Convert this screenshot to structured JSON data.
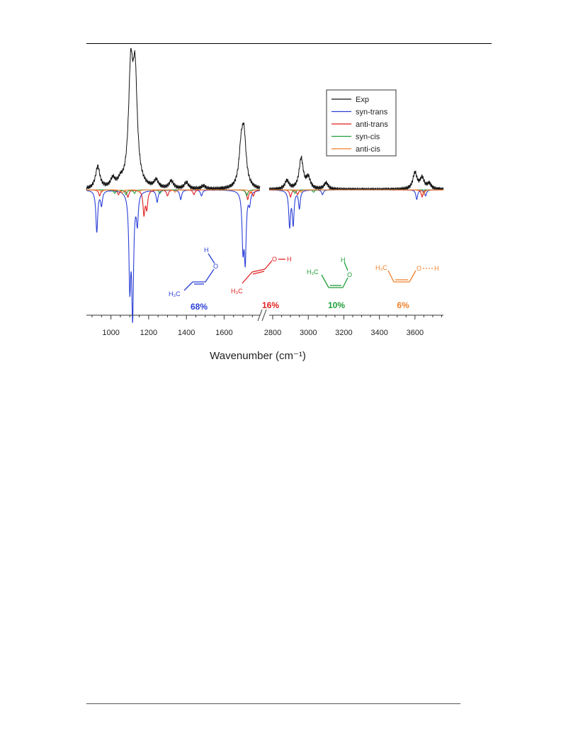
{
  "chart_data": {
    "type": "line",
    "xlabel": "Wavenumber (cm⁻¹)",
    "x_axis": {
      "broken": true,
      "segments": [
        {
          "range": [
            870,
            1790
          ],
          "ticks": [
            1000,
            1200,
            1400,
            1600
          ]
        },
        {
          "range": [
            2780,
            3760
          ],
          "ticks": [
            2800,
            3000,
            3200,
            3400,
            3600
          ]
        }
      ]
    },
    "legend": {
      "position": "top-right",
      "entries": [
        "Exp",
        "syn-trans",
        "anti-trans",
        "syn-cis",
        "anti-cis"
      ]
    },
    "series": [
      {
        "name": "Exp",
        "color": "#111111",
        "direction": "up",
        "peaks": [
          [
            930,
            0.2
          ],
          [
            1010,
            0.08
          ],
          [
            1050,
            0.05
          ],
          [
            1105,
            1.0
          ],
          [
            1128,
            0.95
          ],
          [
            1240,
            0.07
          ],
          [
            1320,
            0.07
          ],
          [
            1400,
            0.06
          ],
          [
            1490,
            0.03
          ],
          [
            1690,
            0.3
          ],
          [
            1705,
            0.45
          ],
          [
            2880,
            0.08
          ],
          [
            2960,
            0.28
          ],
          [
            3000,
            0.1
          ],
          [
            3100,
            0.06
          ],
          [
            3600,
            0.15
          ],
          [
            3640,
            0.1
          ],
          [
            3680,
            0.05
          ]
        ]
      },
      {
        "name": "syn-trans",
        "color": "#2a3fd6",
        "direction": "down",
        "peaks": [
          [
            925,
            0.35
          ],
          [
            950,
            0.12
          ],
          [
            1100,
            0.75
          ],
          [
            1115,
            1.0
          ],
          [
            1140,
            0.25
          ],
          [
            1245,
            0.1
          ],
          [
            1370,
            0.08
          ],
          [
            1480,
            0.05
          ],
          [
            1700,
            0.45
          ],
          [
            1712,
            0.55
          ],
          [
            1735,
            0.1
          ],
          [
            2895,
            0.3
          ],
          [
            2915,
            0.28
          ],
          [
            2950,
            0.15
          ],
          [
            3080,
            0.04
          ],
          [
            3610,
            0.08
          ],
          [
            3660,
            0.05
          ]
        ]
      },
      {
        "name": "anti-trans",
        "color": "#e01f1f",
        "direction": "down",
        "peaks": [
          [
            940,
            0.05
          ],
          [
            1040,
            0.04
          ],
          [
            1090,
            0.06
          ],
          [
            1175,
            0.2
          ],
          [
            1190,
            0.15
          ],
          [
            1300,
            0.05
          ],
          [
            1440,
            0.04
          ],
          [
            1725,
            0.08
          ],
          [
            1755,
            0.05
          ],
          [
            2900,
            0.06
          ],
          [
            2940,
            0.04
          ],
          [
            3640,
            0.06
          ]
        ]
      },
      {
        "name": "syn-cis",
        "color": "#1e9e3a",
        "direction": "down",
        "peaks": [
          [
            1020,
            0.03
          ],
          [
            1080,
            0.04
          ],
          [
            1125,
            0.03
          ],
          [
            1260,
            0.03
          ],
          [
            1720,
            0.05
          ],
          [
            2925,
            0.03
          ],
          [
            3030,
            0.02
          ]
        ]
      },
      {
        "name": "anti-cis",
        "color": "#f07f2a",
        "direction": "down",
        "peaks": [
          [
            950,
            0.02
          ],
          [
            1060,
            0.03
          ],
          [
            1150,
            0.02
          ],
          [
            1340,
            0.02
          ],
          [
            1740,
            0.03
          ],
          [
            2960,
            0.02
          ],
          [
            3650,
            0.04
          ]
        ]
      }
    ],
    "annotations": [
      {
        "percent": "68%",
        "color": "#2a3fd6",
        "o_label": "O",
        "h_label": "H",
        "ch3_label": "H₃C"
      },
      {
        "percent": "16%",
        "color": "#e01f1f",
        "o_label": "O",
        "h_label": "H",
        "ch3_label": "H₃C"
      },
      {
        "percent": "10%",
        "color": "#1e9e3a",
        "o_label": "O",
        "h_label": "H",
        "ch3_label": "H₃C"
      },
      {
        "percent": "6%",
        "color": "#f07f2a",
        "o_label": "O",
        "h_label": "H",
        "ch3_label": "H₃C"
      }
    ]
  }
}
